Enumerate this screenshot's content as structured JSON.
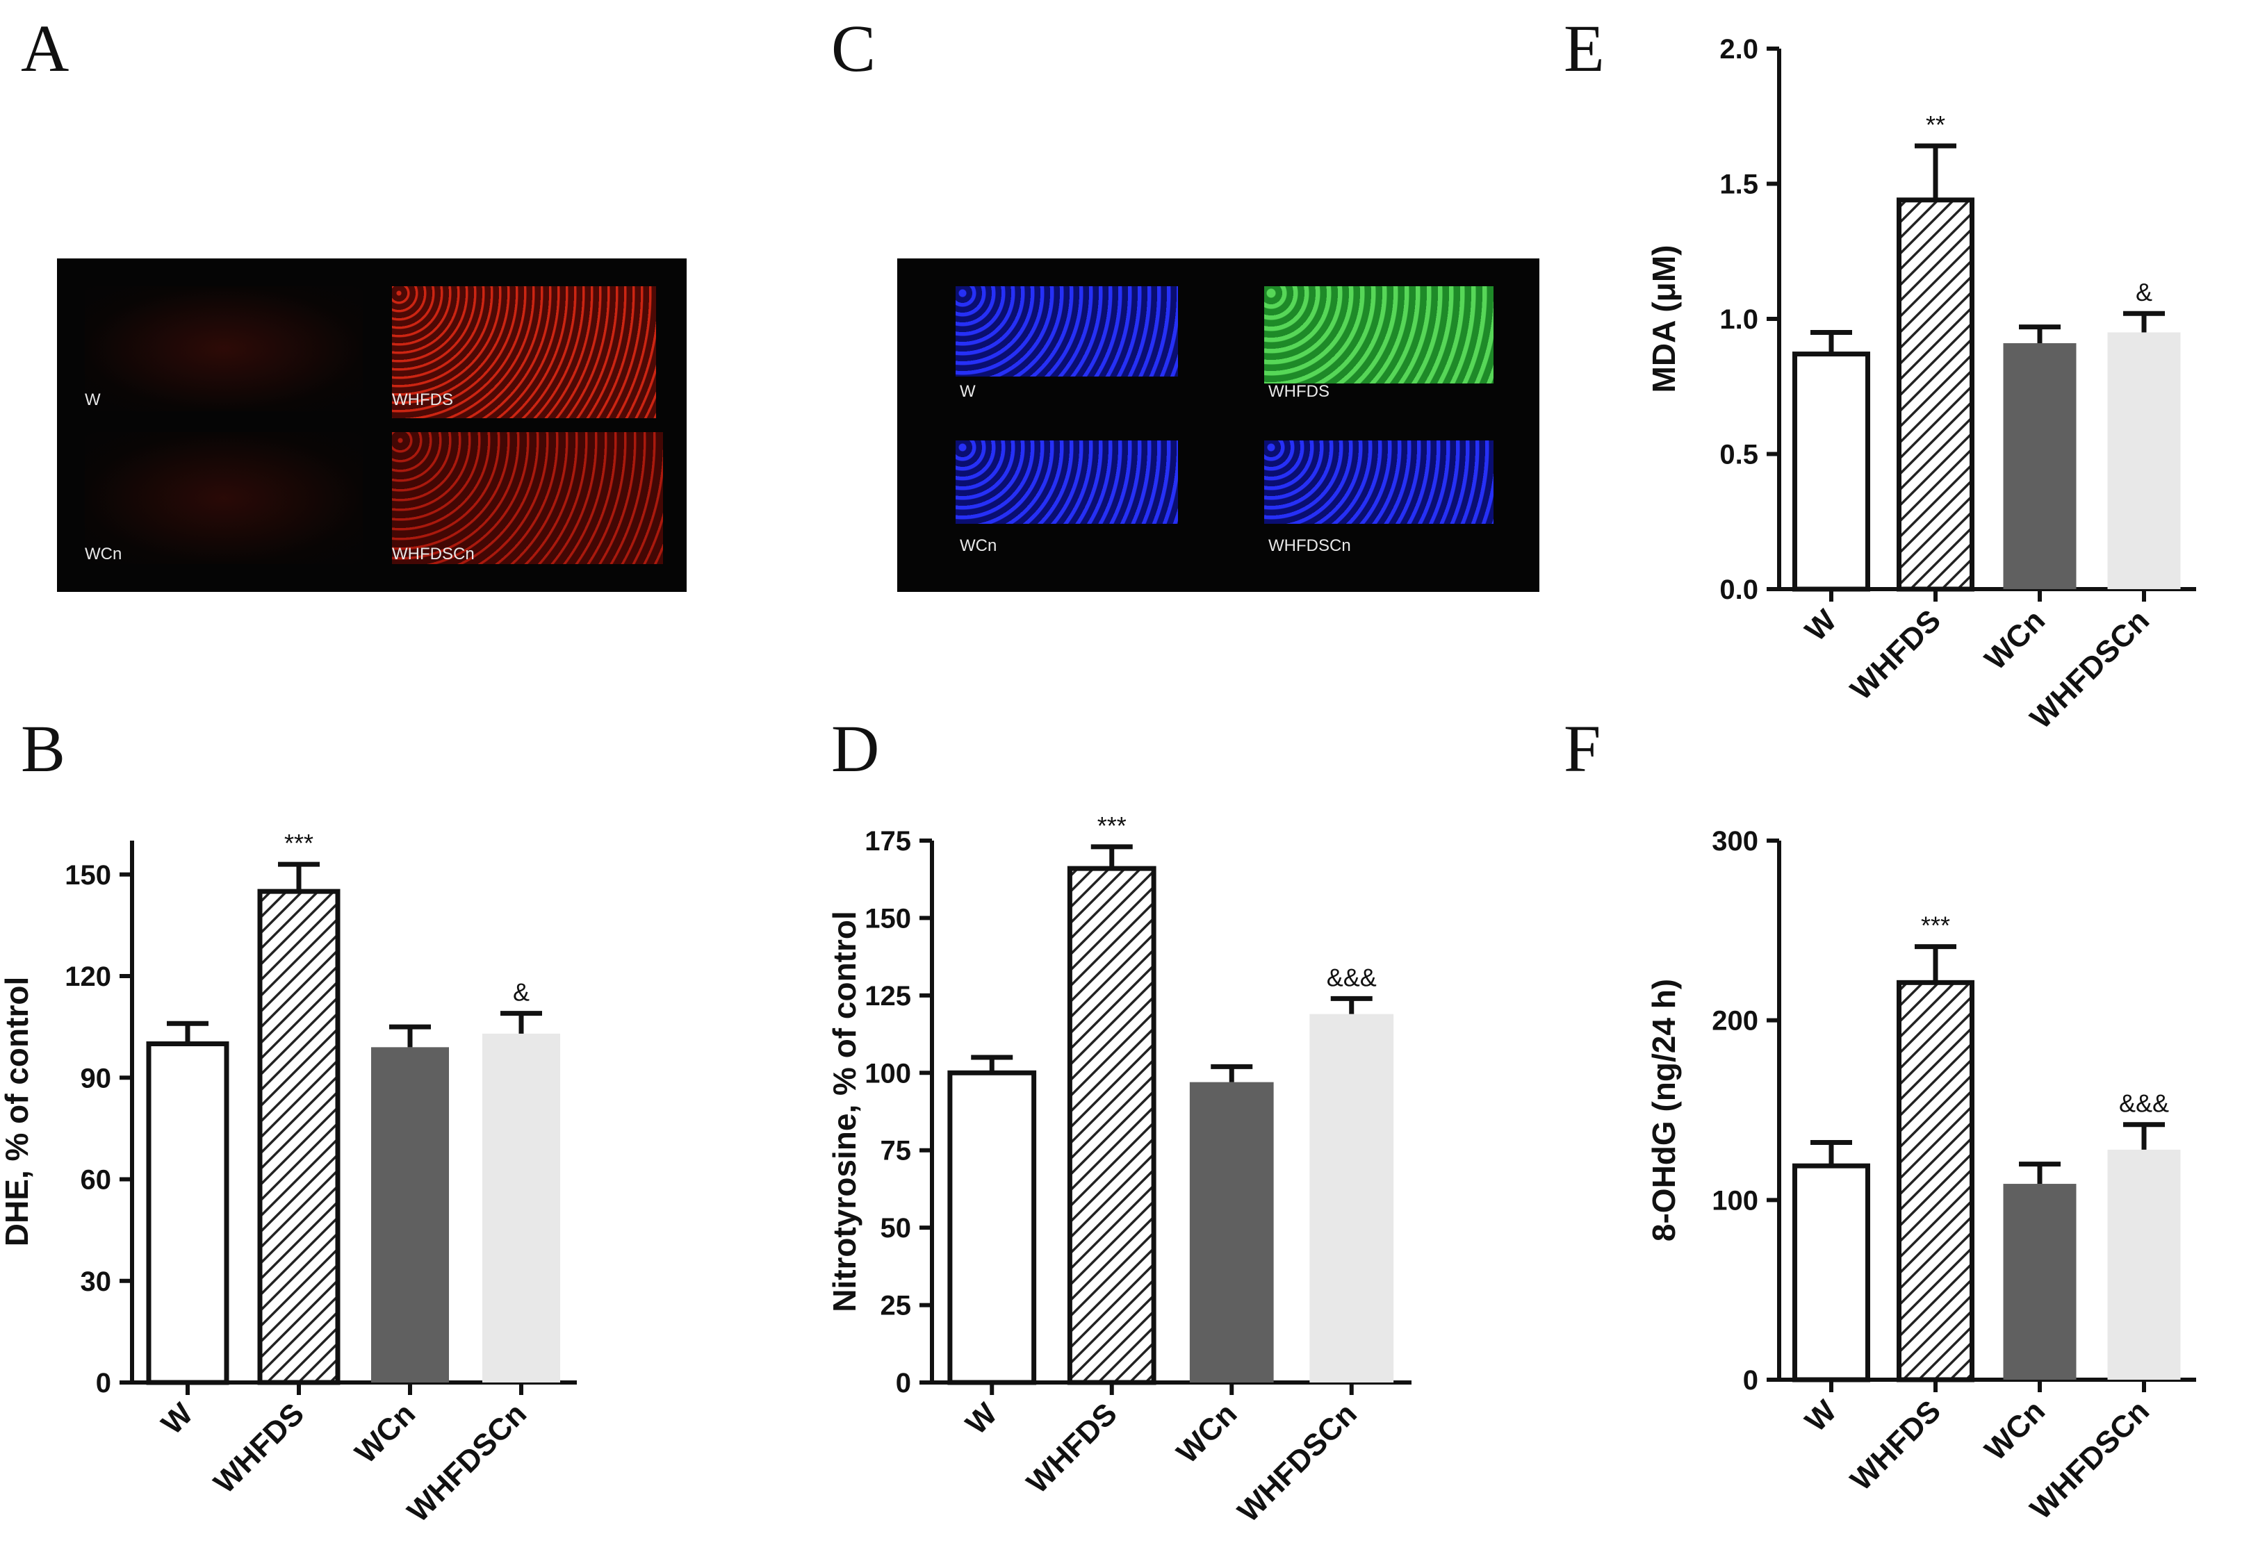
{
  "panels": {
    "A": "A",
    "B": "B",
    "C": "C",
    "D": "D",
    "E": "E",
    "F": "F"
  },
  "micrographs": {
    "A": {
      "labels": [
        "W",
        "WHFDS",
        "WCn",
        "WHFDSCn"
      ],
      "stain_color": "#d02010"
    },
    "C": {
      "labels": [
        "W",
        "WHFDS",
        "WCn",
        "WHFDSCn"
      ],
      "nuclear_color": "#2030ff",
      "nitro_color": "#30c030"
    }
  },
  "chart_data": [
    {
      "id": "B",
      "type": "bar",
      "categories": [
        "W",
        "WHFDS",
        "WCn",
        "WHFDSCn"
      ],
      "values": [
        100,
        145,
        99,
        103
      ],
      "errors": [
        6,
        8,
        6,
        6
      ],
      "annotations": [
        "",
        "***",
        "",
        "&"
      ],
      "ylabel": "DHE, % of control",
      "ylim": [
        0,
        160
      ],
      "yticks": [
        "0",
        "30",
        "60",
        "90",
        "120",
        "150"
      ],
      "fills": [
        "#ffffff",
        "hatch",
        "#606060",
        "#e8e8e8"
      ]
    },
    {
      "id": "D",
      "type": "bar",
      "categories": [
        "W",
        "WHFDS",
        "WCn",
        "WHFDSCn"
      ],
      "values": [
        100,
        166,
        97,
        119
      ],
      "errors": [
        5,
        7,
        5,
        5
      ],
      "annotations": [
        "",
        "***",
        "",
        "&&&"
      ],
      "ylabel": "Nitrotyrosine, % of control",
      "ylim": [
        0,
        175
      ],
      "yticks": [
        "0",
        "25",
        "50",
        "75",
        "100",
        "125",
        "150",
        "175"
      ],
      "fills": [
        "#ffffff",
        "hatch",
        "#606060",
        "#e8e8e8"
      ]
    },
    {
      "id": "E",
      "type": "bar",
      "categories": [
        "W",
        "WHFDS",
        "WCn",
        "WHFDSCn"
      ],
      "values": [
        0.87,
        1.44,
        0.91,
        0.95
      ],
      "errors": [
        0.08,
        0.2,
        0.06,
        0.07
      ],
      "annotations": [
        "",
        "**",
        "",
        "&"
      ],
      "ylabel": "MDA (μM)",
      "ylim": [
        0,
        2.0
      ],
      "yticks": [
        "0.0",
        "0.5",
        "1.0",
        "1.5",
        "2.0"
      ],
      "fills": [
        "#ffffff",
        "hatch",
        "#606060",
        "#e8e8e8"
      ]
    },
    {
      "id": "F",
      "type": "bar",
      "categories": [
        "W",
        "WHFDS",
        "WCn",
        "WHFDSCn"
      ],
      "values": [
        119,
        221,
        109,
        128
      ],
      "errors": [
        13,
        20,
        11,
        14
      ],
      "annotations": [
        "",
        "***",
        "",
        "&&&"
      ],
      "ylabel": "8-OHdG (ng/24 h)",
      "ylim": [
        0,
        300
      ],
      "yticks": [
        "0",
        "100",
        "200",
        "300"
      ],
      "fills": [
        "#ffffff",
        "hatch",
        "#606060",
        "#e8e8e8"
      ]
    }
  ]
}
